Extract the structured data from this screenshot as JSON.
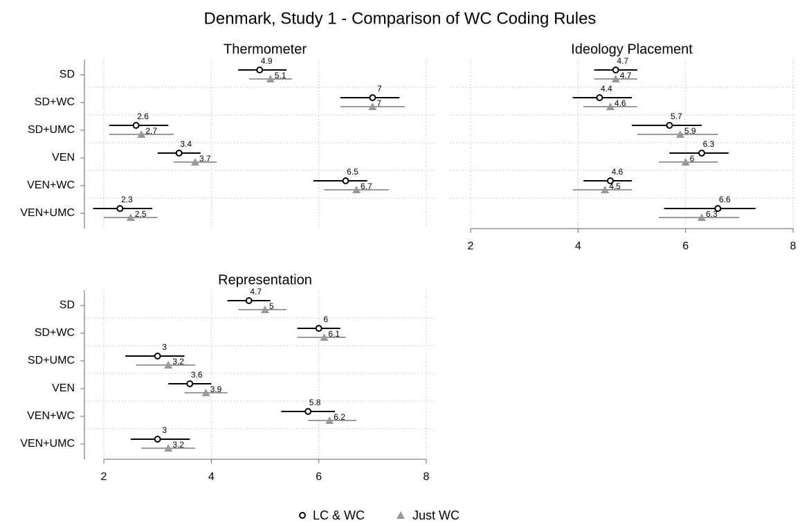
{
  "title": "Denmark, Study 1 - Comparison of WC Coding Rules",
  "chart_data": [
    {
      "type": "dot_ci",
      "title": "Thermometer",
      "categories": [
        "SD",
        "SD+WC",
        "SD+UMC",
        "VEN",
        "VEN+WC",
        "VEN+UMC"
      ],
      "xlim": [
        2,
        8
      ],
      "xticks": [
        2,
        4,
        6,
        8
      ],
      "show_x_labels": false,
      "grid": true,
      "series": [
        {
          "name": "LC & WC",
          "color": "#000000",
          "marker": "circle",
          "values": [
            4.9,
            7,
            2.6,
            3.4,
            6.5,
            2.3
          ],
          "low": [
            4.5,
            6.4,
            2.1,
            3.0,
            5.9,
            1.8
          ],
          "high": [
            5.4,
            7.5,
            3.2,
            3.8,
            6.9,
            2.9
          ]
        },
        {
          "name": "Just WC",
          "color": "#999999",
          "marker": "triangle",
          "values": [
            5.1,
            7,
            2.7,
            3.7,
            6.7,
            2.5
          ],
          "low": [
            4.7,
            6.4,
            2.1,
            3.3,
            6.1,
            2.0
          ],
          "high": [
            5.5,
            7.6,
            3.3,
            4.1,
            7.3,
            3.0
          ]
        }
      ]
    },
    {
      "type": "dot_ci",
      "title": "Ideology Placement",
      "xlim": [
        2,
        8
      ],
      "xticks": [
        2,
        4,
        6,
        8
      ],
      "show_x_labels": true,
      "grid": true,
      "series": [
        {
          "name": "LC & WC",
          "color": "#000000",
          "marker": "circle",
          "values": [
            4.7,
            4.4,
            5.7,
            6.3,
            4.6,
            6.6
          ],
          "low": [
            4.3,
            3.9,
            5.0,
            5.7,
            4.1,
            5.6
          ],
          "high": [
            5.1,
            5.0,
            6.3,
            6.8,
            5.0,
            7.3
          ]
        },
        {
          "name": "Just WC",
          "color": "#999999",
          "marker": "triangle",
          "values": [
            4.7,
            4.6,
            5.9,
            6,
            4.5,
            6.3
          ],
          "low": [
            4.3,
            4.1,
            5.1,
            5.5,
            3.9,
            5.5
          ],
          "high": [
            5.1,
            5.1,
            6.6,
            6.6,
            5.0,
            7.0
          ]
        }
      ]
    },
    {
      "type": "dot_ci",
      "title": "Representation",
      "categories": [
        "SD",
        "SD+WC",
        "SD+UMC",
        "VEN",
        "VEN+WC",
        "VEN+UMC"
      ],
      "xlim": [
        2,
        8
      ],
      "xticks": [
        2,
        4,
        6,
        8
      ],
      "show_x_labels": true,
      "grid": true,
      "series": [
        {
          "name": "LC & WC",
          "color": "#000000",
          "marker": "circle",
          "values": [
            4.7,
            6,
            3,
            3.6,
            5.8,
            3
          ],
          "low": [
            4.3,
            5.6,
            2.4,
            3.2,
            5.3,
            2.5
          ],
          "high": [
            5.1,
            6.4,
            3.5,
            4.0,
            6.3,
            3.6
          ]
        },
        {
          "name": "Just WC",
          "color": "#999999",
          "marker": "triangle",
          "values": [
            5,
            6.1,
            3.2,
            3.9,
            6.2,
            3.2
          ],
          "low": [
            4.5,
            5.6,
            2.6,
            3.5,
            5.8,
            2.7
          ],
          "high": [
            5.4,
            6.5,
            3.7,
            4.3,
            6.7,
            3.7
          ]
        }
      ]
    }
  ]
}
